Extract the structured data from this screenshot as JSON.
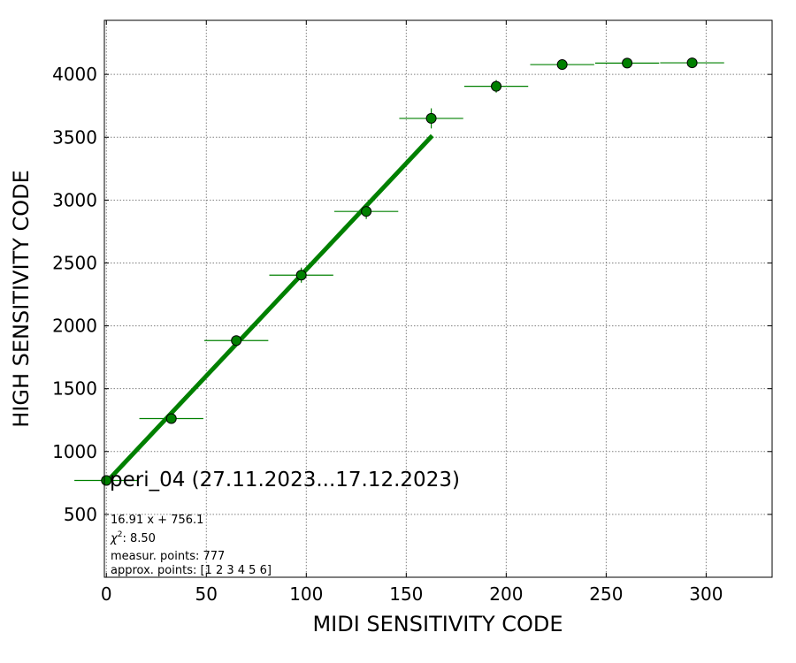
{
  "chart_data": {
    "type": "scatter",
    "xlabel": "MIDI SENSITIVITY CODE",
    "ylabel": "HIGH SENSITIVITY CODE",
    "xlim": [
      -1,
      333
    ],
    "ylim": [
      0,
      4430
    ],
    "xticks": [
      0,
      50,
      100,
      150,
      200,
      250,
      300
    ],
    "yticks": [
      500,
      1000,
      1500,
      2000,
      2500,
      3000,
      3500,
      4000
    ],
    "grid": true,
    "series": [
      {
        "points": [
          {
            "x": 0,
            "y": 770,
            "xerr": 16,
            "yerr": 30
          },
          {
            "x": 32.5,
            "y": 1262,
            "xerr": 16,
            "yerr": 40
          },
          {
            "x": 65,
            "y": 1883,
            "xerr": 16,
            "yerr": 40
          },
          {
            "x": 97.5,
            "y": 2403,
            "xerr": 16,
            "yerr": 60
          },
          {
            "x": 130,
            "y": 2910,
            "xerr": 16,
            "yerr": 60
          },
          {
            "x": 162.5,
            "y": 3650,
            "xerr": 16,
            "yerr": 80
          },
          {
            "x": 195,
            "y": 3905,
            "xerr": 16,
            "yerr": 50
          },
          {
            "x": 228,
            "y": 4078,
            "xerr": 16,
            "yerr": 30
          },
          {
            "x": 260.5,
            "y": 4090,
            "xerr": 16,
            "yerr": 20
          },
          {
            "x": 293,
            "y": 4092,
            "xerr": 16,
            "yerr": 20
          }
        ],
        "color": "#008000"
      }
    ],
    "fit": {
      "slope": 16.91,
      "intercept": 756.1,
      "x_range": [
        0,
        163
      ],
      "color": "#008000"
    },
    "annotations": {
      "dataset": "peri_04 (27.11.2023...17.12.2023)",
      "fit_equation": "16.91 x + 756.1",
      "chi2_symbol": "χ",
      "chi2_sup": "2",
      "chi2_value": ": 8.50",
      "measur_points": "measur. points: 777",
      "approx_points": "approx. points: [1 2 3 4 5 6]"
    }
  }
}
